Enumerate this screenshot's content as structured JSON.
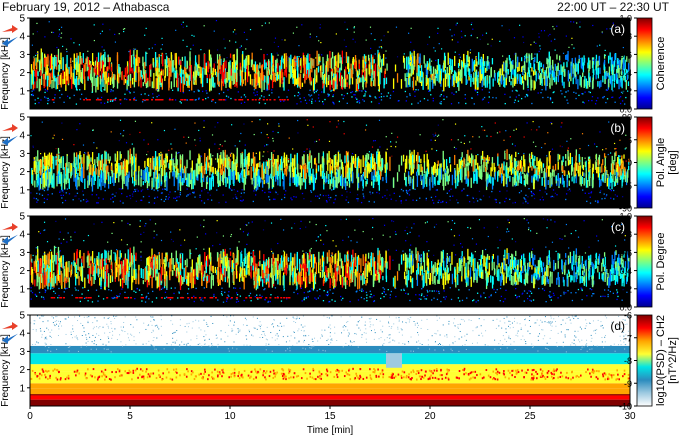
{
  "header": {
    "title_left": "February 19, 2012 – Athabasca",
    "title_right": "22:00 UT – 22:30 UT"
  },
  "colors": {
    "jet": [
      "#00008f",
      "#0000ff",
      "#0080ff",
      "#00ffff",
      "#80ff80",
      "#ffff00",
      "#ff8000",
      "#ff0000",
      "#800000"
    ],
    "psd": [
      "#ffffff",
      "#9ecae1",
      "#2b8cbe",
      "#00e5e5",
      "#ffff33",
      "#ffa500",
      "#ff0000",
      "#800000"
    ],
    "marker_red": "#e8402a",
    "marker_blue": "#1f6fc5"
  },
  "chart_data": {
    "type": "heatmap",
    "x": {
      "label": "Time [min]",
      "range": [
        0,
        30
      ],
      "ticks": [
        "0",
        "5",
        "10",
        "15",
        "20",
        "25",
        "30"
      ]
    },
    "y": {
      "label": "Frequency [kHz]",
      "range": [
        0,
        5
      ],
      "ticks": [
        "1",
        "2",
        "3",
        "4",
        "5"
      ]
    },
    "panels": [
      {
        "id": "a",
        "tag": "(a)",
        "colorbar_label": "Coherence",
        "cbar_range": [
          0,
          1.0
        ],
        "cbar_ticks": [
          "0.0",
          "0.2",
          "0.4",
          "0.6",
          "0.8",
          "1.0"
        ],
        "colormap": "jet",
        "background": "#000000"
      },
      {
        "id": "b",
        "tag": "(b)",
        "colorbar_label": "Pol. Angle [deg]",
        "colorbar_label_lines": [
          "Pol. Angle",
          "[deg]"
        ],
        "cbar_range": [
          -90,
          90
        ],
        "cbar_ticks": [
          "-90",
          "-45",
          "0",
          "45",
          "90"
        ],
        "colormap": "jet",
        "background": "#000000"
      },
      {
        "id": "c",
        "tag": "(c)",
        "colorbar_label": "Pol. Degree",
        "cbar_range": [
          0,
          1.0
        ],
        "cbar_ticks": [
          "0.0",
          "0.2",
          "0.4",
          "0.6",
          "0.8",
          "1.0"
        ],
        "colormap": "jet",
        "background": "#000000"
      },
      {
        "id": "d",
        "tag": "(d)",
        "colorbar_label": "log10(PSD) – CH2 [nT^2/Hz]",
        "colorbar_label_lines": [
          "log10(PSD) – CH2",
          "[nT^2/Hz]"
        ],
        "cbar_range": [
          -10,
          -6
        ],
        "cbar_ticks": [
          "-10",
          "-9",
          "-8",
          "-7",
          "-6"
        ],
        "colormap": "psd",
        "background": "#ffffff"
      }
    ],
    "emission_band_khz": [
      1.3,
      2.6
    ],
    "gap_minutes": [
      17.8,
      18.6
    ],
    "grid": false
  }
}
